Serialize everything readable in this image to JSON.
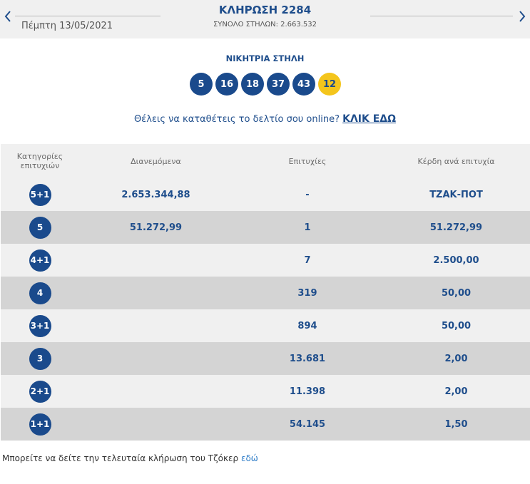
{
  "header": {
    "date": "Πέμπτη 13/05/2021",
    "draw_title": "ΚΛΗΡΩΣΗ 2284",
    "total_columns": "ΣΥΝΟΛΟ ΣΤΗΛΩΝ: 2.663.532"
  },
  "winning": {
    "title": "ΝΙΚΗΤΡΙΑ ΣΤΗΛΗ",
    "numbers": [
      "5",
      "16",
      "18",
      "37",
      "43"
    ],
    "joker": "12"
  },
  "cta": {
    "text": "Θέλεις να καταθέτεις το δελτίο σου online?",
    "link": "ΚΛΙΚ ΕΔΩ"
  },
  "table": {
    "headers": {
      "categories_line1": "Κατηγορίες",
      "categories_line2": "επιτυχιών",
      "distributed": "Διανεμόμενα",
      "winners": "Επιτυχίες",
      "prize": "Κέρδη ανά επιτυχία"
    },
    "rows": [
      {
        "category": "5+1",
        "distributed": "2.653.344,88",
        "winners": "-",
        "prize": "ΤΖΑΚ-ΠΟΤ"
      },
      {
        "category": "5",
        "distributed": "51.272,99",
        "winners": "1",
        "prize": "51.272,99"
      },
      {
        "category": "4+1",
        "distributed": "",
        "winners": "7",
        "prize": "2.500,00"
      },
      {
        "category": "4",
        "distributed": "",
        "winners": "319",
        "prize": "50,00"
      },
      {
        "category": "3+1",
        "distributed": "",
        "winners": "894",
        "prize": "50,00"
      },
      {
        "category": "3",
        "distributed": "",
        "winners": "13.681",
        "prize": "2,00"
      },
      {
        "category": "2+1",
        "distributed": "",
        "winners": "11.398",
        "prize": "2,00"
      },
      {
        "category": "1+1",
        "distributed": "",
        "winners": "54.145",
        "prize": "1,50"
      }
    ]
  },
  "footer": {
    "text": "Μπορείτε να δείτε την τελευταία κλήρωση του Τζόκερ",
    "link": "εδώ"
  },
  "colors": {
    "primary_blue": "#1a4a8c",
    "joker_yellow": "#f4c51c",
    "row_light": "#f0f0f0",
    "row_dark": "#d4d4d4",
    "link_blue": "#2f7dc8"
  }
}
